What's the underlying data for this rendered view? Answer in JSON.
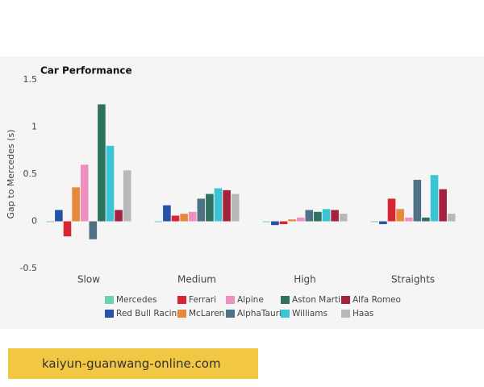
{
  "chart_data": {
    "type": "bar",
    "title": "Car Performance",
    "y_label": "Gap to Mercedes (s)",
    "categories": [
      "Slow",
      "Medium",
      "High",
      "Straights"
    ],
    "series": [
      {
        "name": "Mercedes",
        "color": "#6fcfb4",
        "values": [
          0,
          0,
          0,
          0
        ]
      },
      {
        "name": "Red Bull Racing",
        "color": "#2553a6",
        "values": [
          0.12,
          0.17,
          -0.04,
          -0.03
        ]
      },
      {
        "name": "Ferrari",
        "color": "#d62631",
        "values": [
          -0.16,
          0.06,
          -0.03,
          0.24
        ]
      },
      {
        "name": "McLaren",
        "color": "#e8883a",
        "values": [
          0.36,
          0.08,
          0.02,
          0.13
        ]
      },
      {
        "name": "Alpine",
        "color": "#ee8fbd",
        "values": [
          0.6,
          0.1,
          0.04,
          0.04
        ]
      },
      {
        "name": "AlphaTauri",
        "color": "#4e7186",
        "values": [
          -0.19,
          0.24,
          0.12,
          0.44
        ]
      },
      {
        "name": "Aston Martin",
        "color": "#2e7360",
        "values": [
          1.24,
          0.29,
          0.1,
          0.04
        ]
      },
      {
        "name": "Williams",
        "color": "#3bc3d6",
        "values": [
          0.8,
          0.35,
          0.13,
          0.49
        ]
      },
      {
        "name": "Alfa Romeo",
        "color": "#a3233d",
        "values": [
          0.12,
          0.33,
          0.12,
          0.34
        ]
      },
      {
        "name": "Haas",
        "color": "#b8b8b8",
        "values": [
          0.54,
          0.29,
          0.08,
          0.08
        ]
      }
    ],
    "ylim": [
      -0.5,
      1.5
    ],
    "yticks": [
      -0.5,
      0,
      0.5,
      1,
      1.5
    ],
    "legend": "bottom"
  },
  "banner": {
    "text": "kaiyun-guanwang-online.com"
  }
}
